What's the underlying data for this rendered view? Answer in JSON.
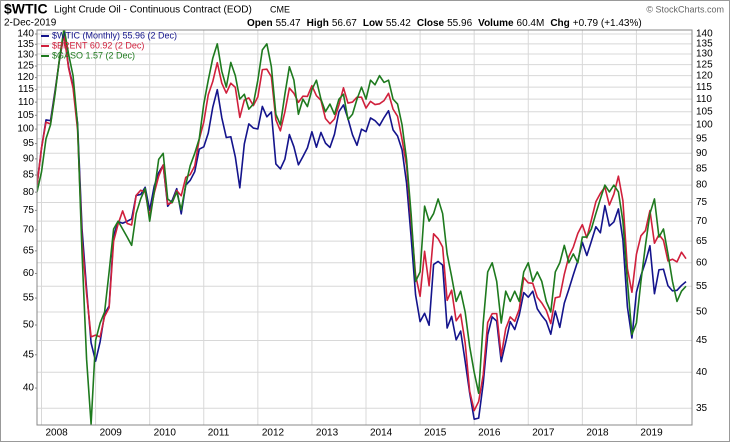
{
  "chart_data": {
    "type": "line",
    "title": "$WTIC",
    "subtitle": "Light Crude Oil - Continuous Contract (EOD)",
    "exchange": "CME",
    "date": "2-Dec-2019",
    "quote": [
      "Open",
      "55.47",
      "High",
      "56.67",
      "Low",
      "55.42",
      "Close",
      "55.96",
      "Volume",
      "60.4M",
      "Chg",
      "+0.79 (+1.43%)"
    ],
    "watermark": "© StockCharts.com",
    "log_scale": true,
    "grid": true,
    "legend": "top-left",
    "categories": [
      null,
      "2008",
      null,
      null,
      null,
      null,
      null,
      null,
      null,
      null,
      null,
      null,
      null,
      "2009",
      null,
      null,
      null,
      null,
      null,
      null,
      null,
      null,
      null,
      null,
      null,
      "2010",
      null,
      null,
      null,
      null,
      null,
      null,
      null,
      null,
      null,
      null,
      null,
      "2011",
      null,
      null,
      null,
      null,
      null,
      null,
      null,
      null,
      null,
      null,
      null,
      "2012",
      null,
      null,
      null,
      null,
      null,
      null,
      null,
      null,
      null,
      null,
      null,
      "2013",
      null,
      null,
      null,
      null,
      null,
      null,
      null,
      null,
      null,
      null,
      null,
      "2014",
      null,
      null,
      null,
      null,
      null,
      null,
      null,
      null,
      null,
      null,
      null,
      "2015",
      null,
      null,
      null,
      null,
      null,
      null,
      null,
      null,
      null,
      null,
      null,
      "2016",
      null,
      null,
      null,
      null,
      null,
      null,
      null,
      null,
      null,
      null,
      null,
      "2017",
      null,
      null,
      null,
      null,
      null,
      null,
      null,
      null,
      null,
      null,
      null,
      "2018",
      null,
      null,
      null,
      null,
      null,
      null,
      null,
      null,
      null,
      null,
      null,
      "2019",
      null,
      null,
      null,
      null,
      null,
      null,
      null,
      null,
      null,
      null,
      null
    ],
    "ylim": [
      35.1,
      142
    ],
    "yticks": [
      40,
      45,
      50,
      55,
      60,
      65,
      70,
      75,
      80,
      85,
      90,
      95,
      100,
      105,
      110,
      115,
      120,
      125,
      130,
      135,
      140
    ],
    "y2lim": [
      32.9,
      142.1
    ],
    "y2ticks": [
      35,
      40,
      45,
      50,
      55,
      60,
      65,
      70,
      75,
      80,
      85,
      90,
      95,
      100,
      105,
      110,
      115,
      120,
      125,
      130,
      135,
      140
    ],
    "series": [
      {
        "name": "$WTIC (Monthly) 55.96 (2 Dec)",
        "color": "#14148c",
        "axis": "y2",
        "values": [
          80,
          91.75,
          101.84,
          101.58,
          113.46,
          127.35,
          140,
          124.08,
          115.46,
          100.64,
          67.81,
          54.43,
          44.6,
          41.68,
          44.76,
          49.66,
          51.12,
          66.31,
          69.89,
          69.45,
          69.96,
          70.61,
          77,
          77.28,
          79.36,
          72.89,
          79.66,
          83.76,
          86.15,
          73.97,
          75.63,
          78.95,
          71.92,
          79.97,
          81.43,
          84.11,
          91.38,
          92.19,
          96.97,
          106.72,
          113.93,
          102.7,
          95.42,
          95.7,
          88.81,
          79.2,
          93.19,
          100.36,
          98.83,
          98.48,
          107.07,
          103.02,
          104.87,
          86.53,
          84.96,
          88.06,
          96.47,
          92.19,
          86.24,
          88.91,
          91.82,
          97.49,
          92.05,
          97.23,
          93.46,
          91.97,
          96.56,
          105.03,
          107.65,
          102.33,
          96.38,
          92.72,
          98.42,
          97.49,
          102.59,
          101.58,
          99.74,
          102.71,
          105.37,
          98.17,
          95.96,
          91.16,
          80.54,
          66.15,
          53.27,
          48.24,
          49.76,
          47.6,
          59.63,
          60.3,
          59.47,
          47.12,
          49.2,
          45.09,
          46.59,
          41.65,
          37.04,
          33.62,
          33.75,
          38.34,
          45.92,
          49.1,
          48.33,
          41.6,
          44.7,
          48.24,
          46.86,
          49.44,
          53.72,
          52.81,
          54.01,
          50.6,
          49.33,
          48.32,
          46.04,
          50.17,
          47.23,
          51.67,
          54.38,
          57.4,
          60.42,
          64.73,
          61.64,
          64.94,
          68.57,
          67.04,
          74.15,
          68.76,
          69.8,
          73.25,
          65.31,
          50.93,
          45.41,
          53.79,
          57.22,
          60.14,
          63.91,
          53.5,
          58.47,
          58.58,
          55.1,
          54.07,
          54.18,
          55.17,
          55.96
        ]
      },
      {
        "name": "$BRENT 60.92 (2 Dec)",
        "color": "#d0203c",
        "axis": "y2",
        "values": [
          80,
          91.75,
          101,
          100.3,
          112.6,
          127.8,
          139.8,
          123.5,
          114.6,
          98.2,
          65,
          53.5,
          45.6,
          45.9,
          45.6,
          49.2,
          50.8,
          65,
          69.3,
          72.7,
          69.4,
          69,
          77,
          78.5,
          77.9,
          71.2,
          77.6,
          82.7,
          86.2,
          74.5,
          75,
          78.4,
          76.9,
          82.3,
          83.2,
          85.9,
          94.8,
          101,
          111.8,
          117.4,
          125.9,
          116.7,
          112.5,
          116.7,
          114.9,
          102.8,
          109.6,
          110.5,
          107.4,
          110.9,
          122.7,
          122.9,
          119.5,
          101.9,
          97.8,
          104.9,
          114.6,
          112.4,
          108.7,
          111.2,
          111.1,
          115.6,
          111.4,
          109.5,
          102.4,
          100.4,
          102.2,
          107.7,
          114.7,
          108.4,
          108.8,
          110.8,
          110.8,
          106.4,
          109.1,
          107.8,
          108.1,
          109.4,
          112.4,
          106,
          103.2,
          94.7,
          85.9,
          70.2,
          57.3,
          52.99,
          62.6,
          55.1,
          66.8,
          65.6,
          63.6,
          52.2,
          54.2,
          48.4,
          49.6,
          44.6,
          37.3,
          34.7,
          35.9,
          39.6,
          48.1,
          49.7,
          49.7,
          42.5,
          47,
          49.1,
          48.3,
          50.5,
          56.8,
          55.7,
          55.6,
          52.8,
          51.7,
          50.3,
          47.9,
          52.7,
          52.9,
          57.5,
          61.4,
          63.6,
          66.9,
          69.1,
          65.8,
          70.3,
          75.2,
          77.6,
          79.4,
          74.3,
          77.4,
          82.7,
          75.5,
          58.7,
          53.8,
          61.9,
          66.3,
          67.6,
          72.8,
          64.5,
          66.6,
          65.2,
          60.4,
          60.8,
          60.2,
          62.4,
          60.92
        ]
      },
      {
        "name": "$GASO 1.57 (2 Dec)",
        "color": "#1e7a1e",
        "axis": "y2",
        "values": [
          78,
          84,
          95,
          100,
          112,
          128,
          143,
          130,
          120,
          100,
          62,
          42,
          33,
          45,
          48,
          50,
          58,
          68,
          70,
          68,
          66,
          64,
          72,
          76,
          79,
          70,
          78,
          88,
          90,
          76,
          75,
          78,
          73,
          80,
          86,
          90,
          95,
          108,
          118,
          128,
          135,
          122,
          115,
          126,
          120,
          110,
          112,
          106,
          108,
          118,
          132,
          135,
          124,
          104,
          100,
          112,
          124,
          118,
          104,
          110,
          107,
          114,
          118,
          110,
          105,
          108,
          104,
          110,
          112,
          102,
          104,
          110,
          115,
          110,
          118,
          116,
          120,
          117,
          118,
          110,
          108,
          100,
          88,
          72,
          56,
          58,
          74,
          70,
          72,
          76,
          72,
          62,
          57,
          52,
          54,
          50,
          44,
          40,
          37,
          48,
          58,
          60,
          56,
          48,
          54,
          52,
          54,
          52,
          58,
          60,
          56,
          58,
          56,
          52,
          50,
          58,
          60,
          64,
          60,
          62,
          60,
          66,
          66,
          68,
          72,
          76,
          80,
          78,
          80,
          78,
          70,
          56,
          46,
          48,
          56,
          64,
          72,
          76,
          66,
          68,
          62,
          56,
          52,
          54,
          55
        ]
      }
    ]
  }
}
